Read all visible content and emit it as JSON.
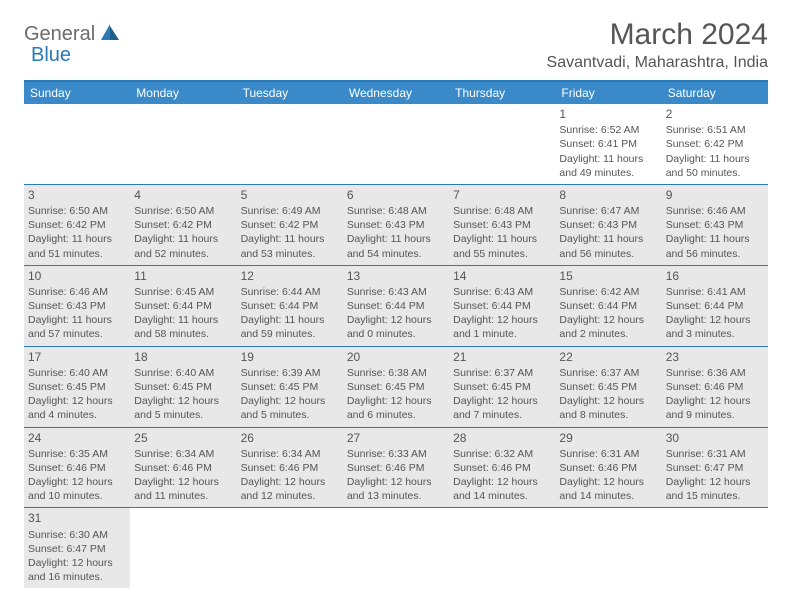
{
  "logo": {
    "text1": "General",
    "text2": "Blue"
  },
  "title": "March 2024",
  "location": "Savantvadi, Maharashtra, India",
  "colors": {
    "headerBg": "#3a89c9",
    "headerText": "#ffffff",
    "borderColor": "#2a7ab8",
    "shadedBg": "#e8e8e8",
    "textColor": "#555555",
    "logoGray": "#6b6b6b",
    "logoBlue": "#2a7ab8"
  },
  "dayHeaders": [
    "Sunday",
    "Monday",
    "Tuesday",
    "Wednesday",
    "Thursday",
    "Friday",
    "Saturday"
  ],
  "weeks": [
    [
      {
        "n": "",
        "sr": "",
        "ss": "",
        "dl": ""
      },
      {
        "n": "",
        "sr": "",
        "ss": "",
        "dl": ""
      },
      {
        "n": "",
        "sr": "",
        "ss": "",
        "dl": ""
      },
      {
        "n": "",
        "sr": "",
        "ss": "",
        "dl": ""
      },
      {
        "n": "",
        "sr": "",
        "ss": "",
        "dl": ""
      },
      {
        "n": "1",
        "sr": "Sunrise: 6:52 AM",
        "ss": "Sunset: 6:41 PM",
        "dl": "Daylight: 11 hours and 49 minutes."
      },
      {
        "n": "2",
        "sr": "Sunrise: 6:51 AM",
        "ss": "Sunset: 6:42 PM",
        "dl": "Daylight: 11 hours and 50 minutes."
      }
    ],
    [
      {
        "n": "3",
        "sr": "Sunrise: 6:50 AM",
        "ss": "Sunset: 6:42 PM",
        "dl": "Daylight: 11 hours and 51 minutes."
      },
      {
        "n": "4",
        "sr": "Sunrise: 6:50 AM",
        "ss": "Sunset: 6:42 PM",
        "dl": "Daylight: 11 hours and 52 minutes."
      },
      {
        "n": "5",
        "sr": "Sunrise: 6:49 AM",
        "ss": "Sunset: 6:42 PM",
        "dl": "Daylight: 11 hours and 53 minutes."
      },
      {
        "n": "6",
        "sr": "Sunrise: 6:48 AM",
        "ss": "Sunset: 6:43 PM",
        "dl": "Daylight: 11 hours and 54 minutes."
      },
      {
        "n": "7",
        "sr": "Sunrise: 6:48 AM",
        "ss": "Sunset: 6:43 PM",
        "dl": "Daylight: 11 hours and 55 minutes."
      },
      {
        "n": "8",
        "sr": "Sunrise: 6:47 AM",
        "ss": "Sunset: 6:43 PM",
        "dl": "Daylight: 11 hours and 56 minutes."
      },
      {
        "n": "9",
        "sr": "Sunrise: 6:46 AM",
        "ss": "Sunset: 6:43 PM",
        "dl": "Daylight: 11 hours and 56 minutes."
      }
    ],
    [
      {
        "n": "10",
        "sr": "Sunrise: 6:46 AM",
        "ss": "Sunset: 6:43 PM",
        "dl": "Daylight: 11 hours and 57 minutes."
      },
      {
        "n": "11",
        "sr": "Sunrise: 6:45 AM",
        "ss": "Sunset: 6:44 PM",
        "dl": "Daylight: 11 hours and 58 minutes."
      },
      {
        "n": "12",
        "sr": "Sunrise: 6:44 AM",
        "ss": "Sunset: 6:44 PM",
        "dl": "Daylight: 11 hours and 59 minutes."
      },
      {
        "n": "13",
        "sr": "Sunrise: 6:43 AM",
        "ss": "Sunset: 6:44 PM",
        "dl": "Daylight: 12 hours and 0 minutes."
      },
      {
        "n": "14",
        "sr": "Sunrise: 6:43 AM",
        "ss": "Sunset: 6:44 PM",
        "dl": "Daylight: 12 hours and 1 minute."
      },
      {
        "n": "15",
        "sr": "Sunrise: 6:42 AM",
        "ss": "Sunset: 6:44 PM",
        "dl": "Daylight: 12 hours and 2 minutes."
      },
      {
        "n": "16",
        "sr": "Sunrise: 6:41 AM",
        "ss": "Sunset: 6:44 PM",
        "dl": "Daylight: 12 hours and 3 minutes."
      }
    ],
    [
      {
        "n": "17",
        "sr": "Sunrise: 6:40 AM",
        "ss": "Sunset: 6:45 PM",
        "dl": "Daylight: 12 hours and 4 minutes."
      },
      {
        "n": "18",
        "sr": "Sunrise: 6:40 AM",
        "ss": "Sunset: 6:45 PM",
        "dl": "Daylight: 12 hours and 5 minutes."
      },
      {
        "n": "19",
        "sr": "Sunrise: 6:39 AM",
        "ss": "Sunset: 6:45 PM",
        "dl": "Daylight: 12 hours and 5 minutes."
      },
      {
        "n": "20",
        "sr": "Sunrise: 6:38 AM",
        "ss": "Sunset: 6:45 PM",
        "dl": "Daylight: 12 hours and 6 minutes."
      },
      {
        "n": "21",
        "sr": "Sunrise: 6:37 AM",
        "ss": "Sunset: 6:45 PM",
        "dl": "Daylight: 12 hours and 7 minutes."
      },
      {
        "n": "22",
        "sr": "Sunrise: 6:37 AM",
        "ss": "Sunset: 6:45 PM",
        "dl": "Daylight: 12 hours and 8 minutes."
      },
      {
        "n": "23",
        "sr": "Sunrise: 6:36 AM",
        "ss": "Sunset: 6:46 PM",
        "dl": "Daylight: 12 hours and 9 minutes."
      }
    ],
    [
      {
        "n": "24",
        "sr": "Sunrise: 6:35 AM",
        "ss": "Sunset: 6:46 PM",
        "dl": "Daylight: 12 hours and 10 minutes."
      },
      {
        "n": "25",
        "sr": "Sunrise: 6:34 AM",
        "ss": "Sunset: 6:46 PM",
        "dl": "Daylight: 12 hours and 11 minutes."
      },
      {
        "n": "26",
        "sr": "Sunrise: 6:34 AM",
        "ss": "Sunset: 6:46 PM",
        "dl": "Daylight: 12 hours and 12 minutes."
      },
      {
        "n": "27",
        "sr": "Sunrise: 6:33 AM",
        "ss": "Sunset: 6:46 PM",
        "dl": "Daylight: 12 hours and 13 minutes."
      },
      {
        "n": "28",
        "sr": "Sunrise: 6:32 AM",
        "ss": "Sunset: 6:46 PM",
        "dl": "Daylight: 12 hours and 14 minutes."
      },
      {
        "n": "29",
        "sr": "Sunrise: 6:31 AM",
        "ss": "Sunset: 6:46 PM",
        "dl": "Daylight: 12 hours and 14 minutes."
      },
      {
        "n": "30",
        "sr": "Sunrise: 6:31 AM",
        "ss": "Sunset: 6:47 PM",
        "dl": "Daylight: 12 hours and 15 minutes."
      }
    ],
    [
      {
        "n": "31",
        "sr": "Sunrise: 6:30 AM",
        "ss": "Sunset: 6:47 PM",
        "dl": "Daylight: 12 hours and 16 minutes."
      },
      {
        "n": "",
        "sr": "",
        "ss": "",
        "dl": ""
      },
      {
        "n": "",
        "sr": "",
        "ss": "",
        "dl": ""
      },
      {
        "n": "",
        "sr": "",
        "ss": "",
        "dl": ""
      },
      {
        "n": "",
        "sr": "",
        "ss": "",
        "dl": ""
      },
      {
        "n": "",
        "sr": "",
        "ss": "",
        "dl": ""
      },
      {
        "n": "",
        "sr": "",
        "ss": "",
        "dl": ""
      }
    ]
  ]
}
